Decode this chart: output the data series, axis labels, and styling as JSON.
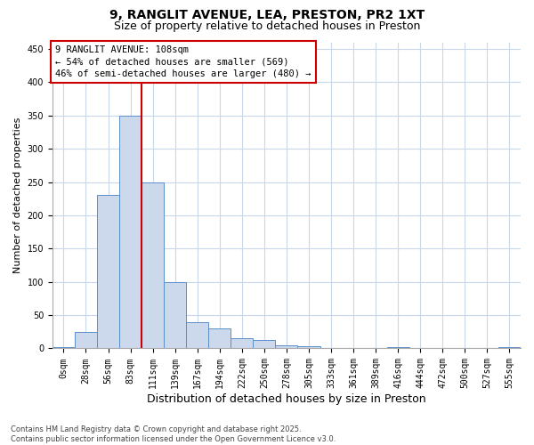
{
  "title_line1": "9, RANGLIT AVENUE, LEA, PRESTON, PR2 1XT",
  "title_line2": "Size of property relative to detached houses in Preston",
  "xlabel": "Distribution of detached houses by size in Preston",
  "ylabel": "Number of detached properties",
  "bar_labels": [
    "0sqm",
    "28sqm",
    "56sqm",
    "83sqm",
    "111sqm",
    "139sqm",
    "167sqm",
    "194sqm",
    "222sqm",
    "250sqm",
    "278sqm",
    "305sqm",
    "333sqm",
    "361sqm",
    "389sqm",
    "416sqm",
    "444sqm",
    "472sqm",
    "500sqm",
    "527sqm",
    "555sqm"
  ],
  "bar_heights": [
    2,
    25,
    230,
    350,
    250,
    100,
    40,
    30,
    15,
    12,
    5,
    3,
    0,
    0,
    0,
    2,
    0,
    0,
    0,
    0,
    2
  ],
  "bar_color": "#ccd9ec",
  "bar_edge_color": "#5b8fc9",
  "ylim": [
    0,
    460
  ],
  "yticks": [
    0,
    50,
    100,
    150,
    200,
    250,
    300,
    350,
    400,
    450
  ],
  "property_line_x": 4.0,
  "property_line_color": "#cc0000",
  "annotation_text": "9 RANGLIT AVENUE: 108sqm\n← 54% of detached houses are smaller (569)\n46% of semi-detached houses are larger (480) →",
  "annotation_box_color": "#cc0000",
  "footer_line1": "Contains HM Land Registry data © Crown copyright and database right 2025.",
  "footer_line2": "Contains public sector information licensed under the Open Government Licence v3.0.",
  "bg_color": "#ffffff",
  "grid_color": "#c8d8e8",
  "title_fontsize": 10,
  "subtitle_fontsize": 9,
  "ylabel_fontsize": 8,
  "xlabel_fontsize": 9,
  "tick_fontsize": 7,
  "footer_fontsize": 6,
  "ann_fontsize": 7.5
}
